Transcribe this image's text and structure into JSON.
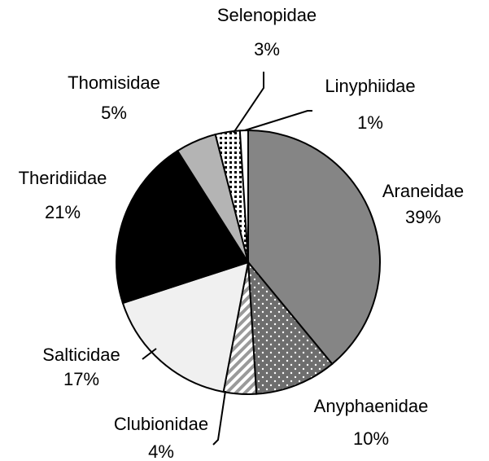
{
  "chart_data": {
    "type": "pie",
    "categories": [
      "Araneidae",
      "Anyphaenidae",
      "Clubionidae",
      "Salticidae",
      "Theridiidae",
      "Thomisidae",
      "Selenopidae",
      "Linyphiidae"
    ],
    "values": [
      39,
      10,
      4,
      17,
      21,
      5,
      3,
      1
    ],
    "value_labels": [
      "39%",
      "10%",
      "4%",
      "17%",
      "21%",
      "5%",
      "3%",
      "1%"
    ],
    "colors": [
      "#858585",
      "#6e6e6e",
      "#ffffff",
      "#f0f0f0",
      "#000000",
      "#b4b4b4",
      "#ffffff",
      "#ffffff"
    ],
    "patterns": [
      "none",
      "dots",
      "stripes",
      "none",
      "none",
      "none",
      "checks",
      "none"
    ]
  }
}
